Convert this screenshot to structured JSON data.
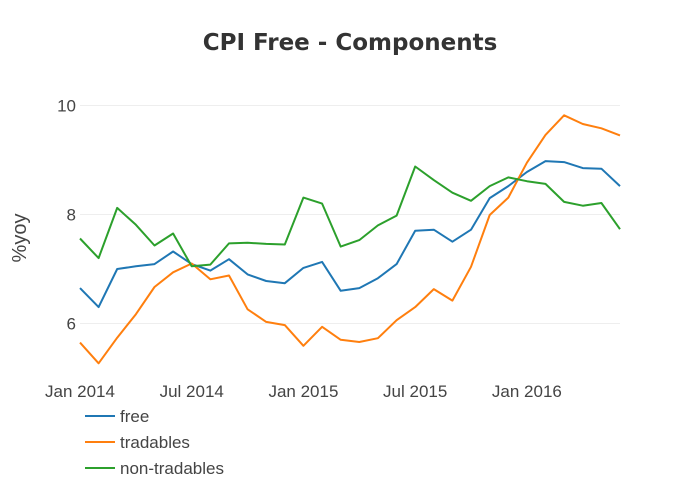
{
  "chart_data": {
    "type": "line",
    "title": "CPI Free - Components",
    "xlabel": "",
    "ylabel": "%yoy",
    "x": [
      "2014-01",
      "2014-02",
      "2014-03",
      "2014-04",
      "2014-05",
      "2014-06",
      "2014-07",
      "2014-08",
      "2014-09",
      "2014-10",
      "2014-11",
      "2014-12",
      "2015-01",
      "2015-02",
      "2015-03",
      "2015-04",
      "2015-05",
      "2015-06",
      "2015-07",
      "2015-08",
      "2015-09",
      "2015-10",
      "2015-11",
      "2015-12",
      "2016-01",
      "2016-02",
      "2016-03",
      "2016-04",
      "2016-05",
      "2016-06"
    ],
    "xticks": [
      {
        "date": "2014-01",
        "label": "Jan 2014"
      },
      {
        "date": "2014-07",
        "label": "Jul 2014"
      },
      {
        "date": "2015-01",
        "label": "Jan 2015"
      },
      {
        "date": "2015-07",
        "label": "Jul 2015"
      },
      {
        "date": "2016-01",
        "label": "Jan 2016"
      }
    ],
    "yticks": [
      6,
      8,
      10
    ],
    "ylim": [
      5.0,
      10.1
    ],
    "grid": true,
    "legend_position": "bottom-left",
    "series": [
      {
        "name": "free",
        "color": "#1f77b4",
        "values": [
          6.65,
          6.3,
          7.0,
          7.05,
          7.09,
          7.32,
          7.09,
          6.97,
          7.18,
          6.9,
          6.78,
          6.74,
          7.02,
          7.13,
          6.6,
          6.65,
          6.83,
          7.09,
          7.7,
          7.72,
          7.5,
          7.72,
          8.3,
          8.52,
          8.78,
          8.98,
          8.96,
          8.85,
          8.84,
          8.52
        ]
      },
      {
        "name": "tradables",
        "color": "#ff7f0e",
        "values": [
          5.65,
          5.27,
          5.74,
          6.17,
          6.67,
          6.94,
          7.1,
          6.81,
          6.88,
          6.26,
          6.03,
          5.97,
          5.59,
          5.94,
          5.7,
          5.66,
          5.73,
          6.06,
          6.3,
          6.63,
          6.42,
          7.04,
          7.99,
          8.31,
          8.95,
          9.46,
          9.82,
          9.66,
          9.58,
          9.45
        ]
      },
      {
        "name": "non-tradables",
        "color": "#2ca02c",
        "values": [
          7.56,
          7.2,
          8.12,
          7.81,
          7.43,
          7.65,
          7.05,
          7.08,
          7.47,
          7.48,
          7.46,
          7.45,
          8.31,
          8.2,
          7.41,
          7.53,
          7.8,
          7.98,
          8.88,
          8.63,
          8.4,
          8.25,
          8.52,
          8.68,
          8.61,
          8.56,
          8.23,
          8.16,
          8.21,
          7.73
        ]
      }
    ]
  }
}
